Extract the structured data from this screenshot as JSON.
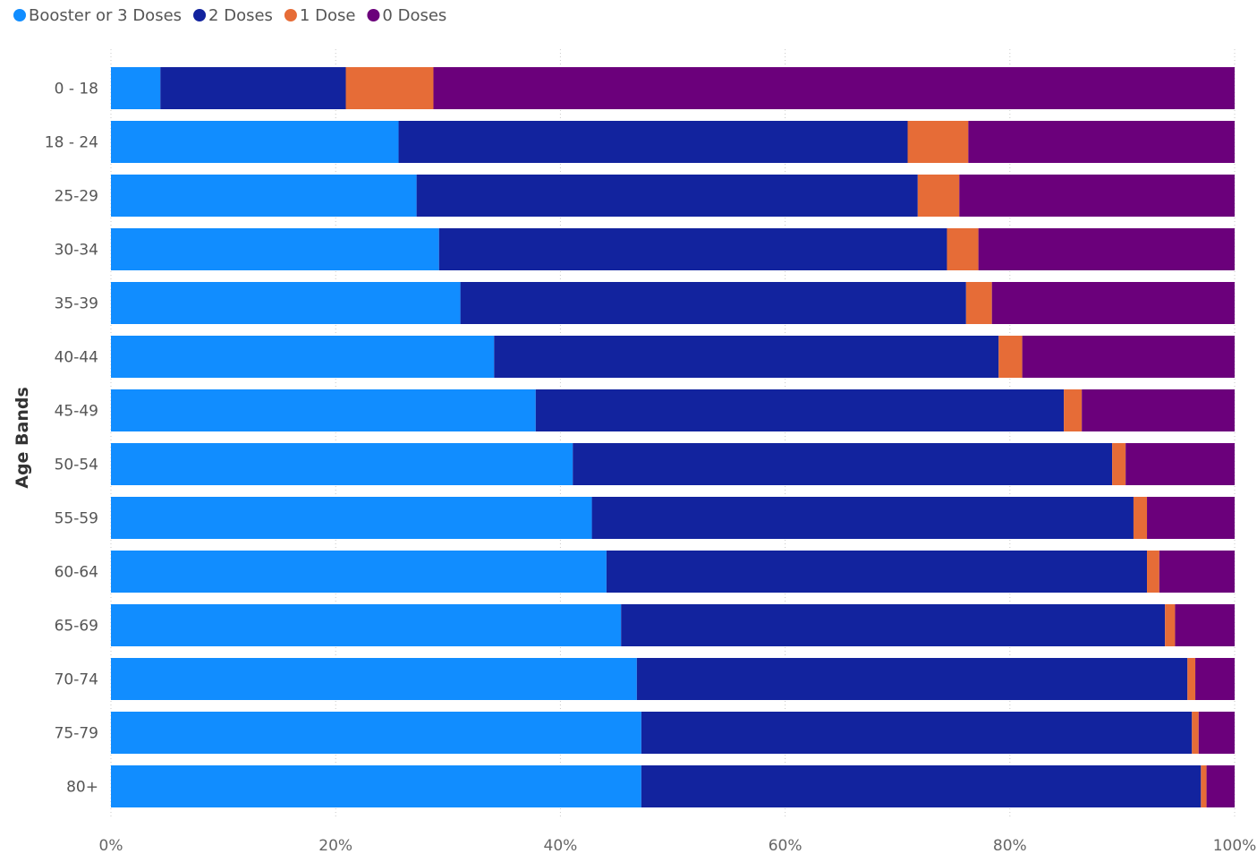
{
  "chart_data": {
    "type": "bar",
    "orientation": "horizontal",
    "stacked": "100%",
    "ylabel": "Age Bands",
    "xlim": [
      0,
      100
    ],
    "x_ticks": [
      "0%",
      "20%",
      "40%",
      "60%",
      "80%",
      "100%"
    ],
    "grid": "vertical dotted",
    "legend_position": "top-left",
    "categories": [
      "0 - 18",
      "18 - 24",
      "25-29",
      "30-34",
      "35-39",
      "40-44",
      "45-49",
      "50-54",
      "55-59",
      "60-64",
      "65-69",
      "70-74",
      "75-79",
      "80+"
    ],
    "series": [
      {
        "name": "Booster or 3 Doses",
        "color": "#118DFF",
        "values": [
          4.4,
          25.6,
          27.2,
          29.2,
          31.1,
          34.1,
          37.8,
          41.1,
          42.8,
          44.1,
          45.4,
          46.8,
          47.2,
          47.2
        ]
      },
      {
        "name": "2 Doses",
        "color": "#12239E",
        "values": [
          16.5,
          45.3,
          44.6,
          45.2,
          45.0,
          44.9,
          47.0,
          48.0,
          48.2,
          48.1,
          48.4,
          49.0,
          49.0,
          49.8
        ]
      },
      {
        "name": "1 Dose",
        "color": "#E66C37",
        "values": [
          7.8,
          5.4,
          3.7,
          2.8,
          2.3,
          2.1,
          1.6,
          1.2,
          1.2,
          1.1,
          0.9,
          0.7,
          0.6,
          0.5
        ]
      },
      {
        "name": "0 Doses",
        "color": "#6B007B",
        "values": [
          71.3,
          23.7,
          24.5,
          22.8,
          21.6,
          18.9,
          13.6,
          9.7,
          7.8,
          6.7,
          5.3,
          3.5,
          3.2,
          2.5
        ]
      }
    ]
  }
}
